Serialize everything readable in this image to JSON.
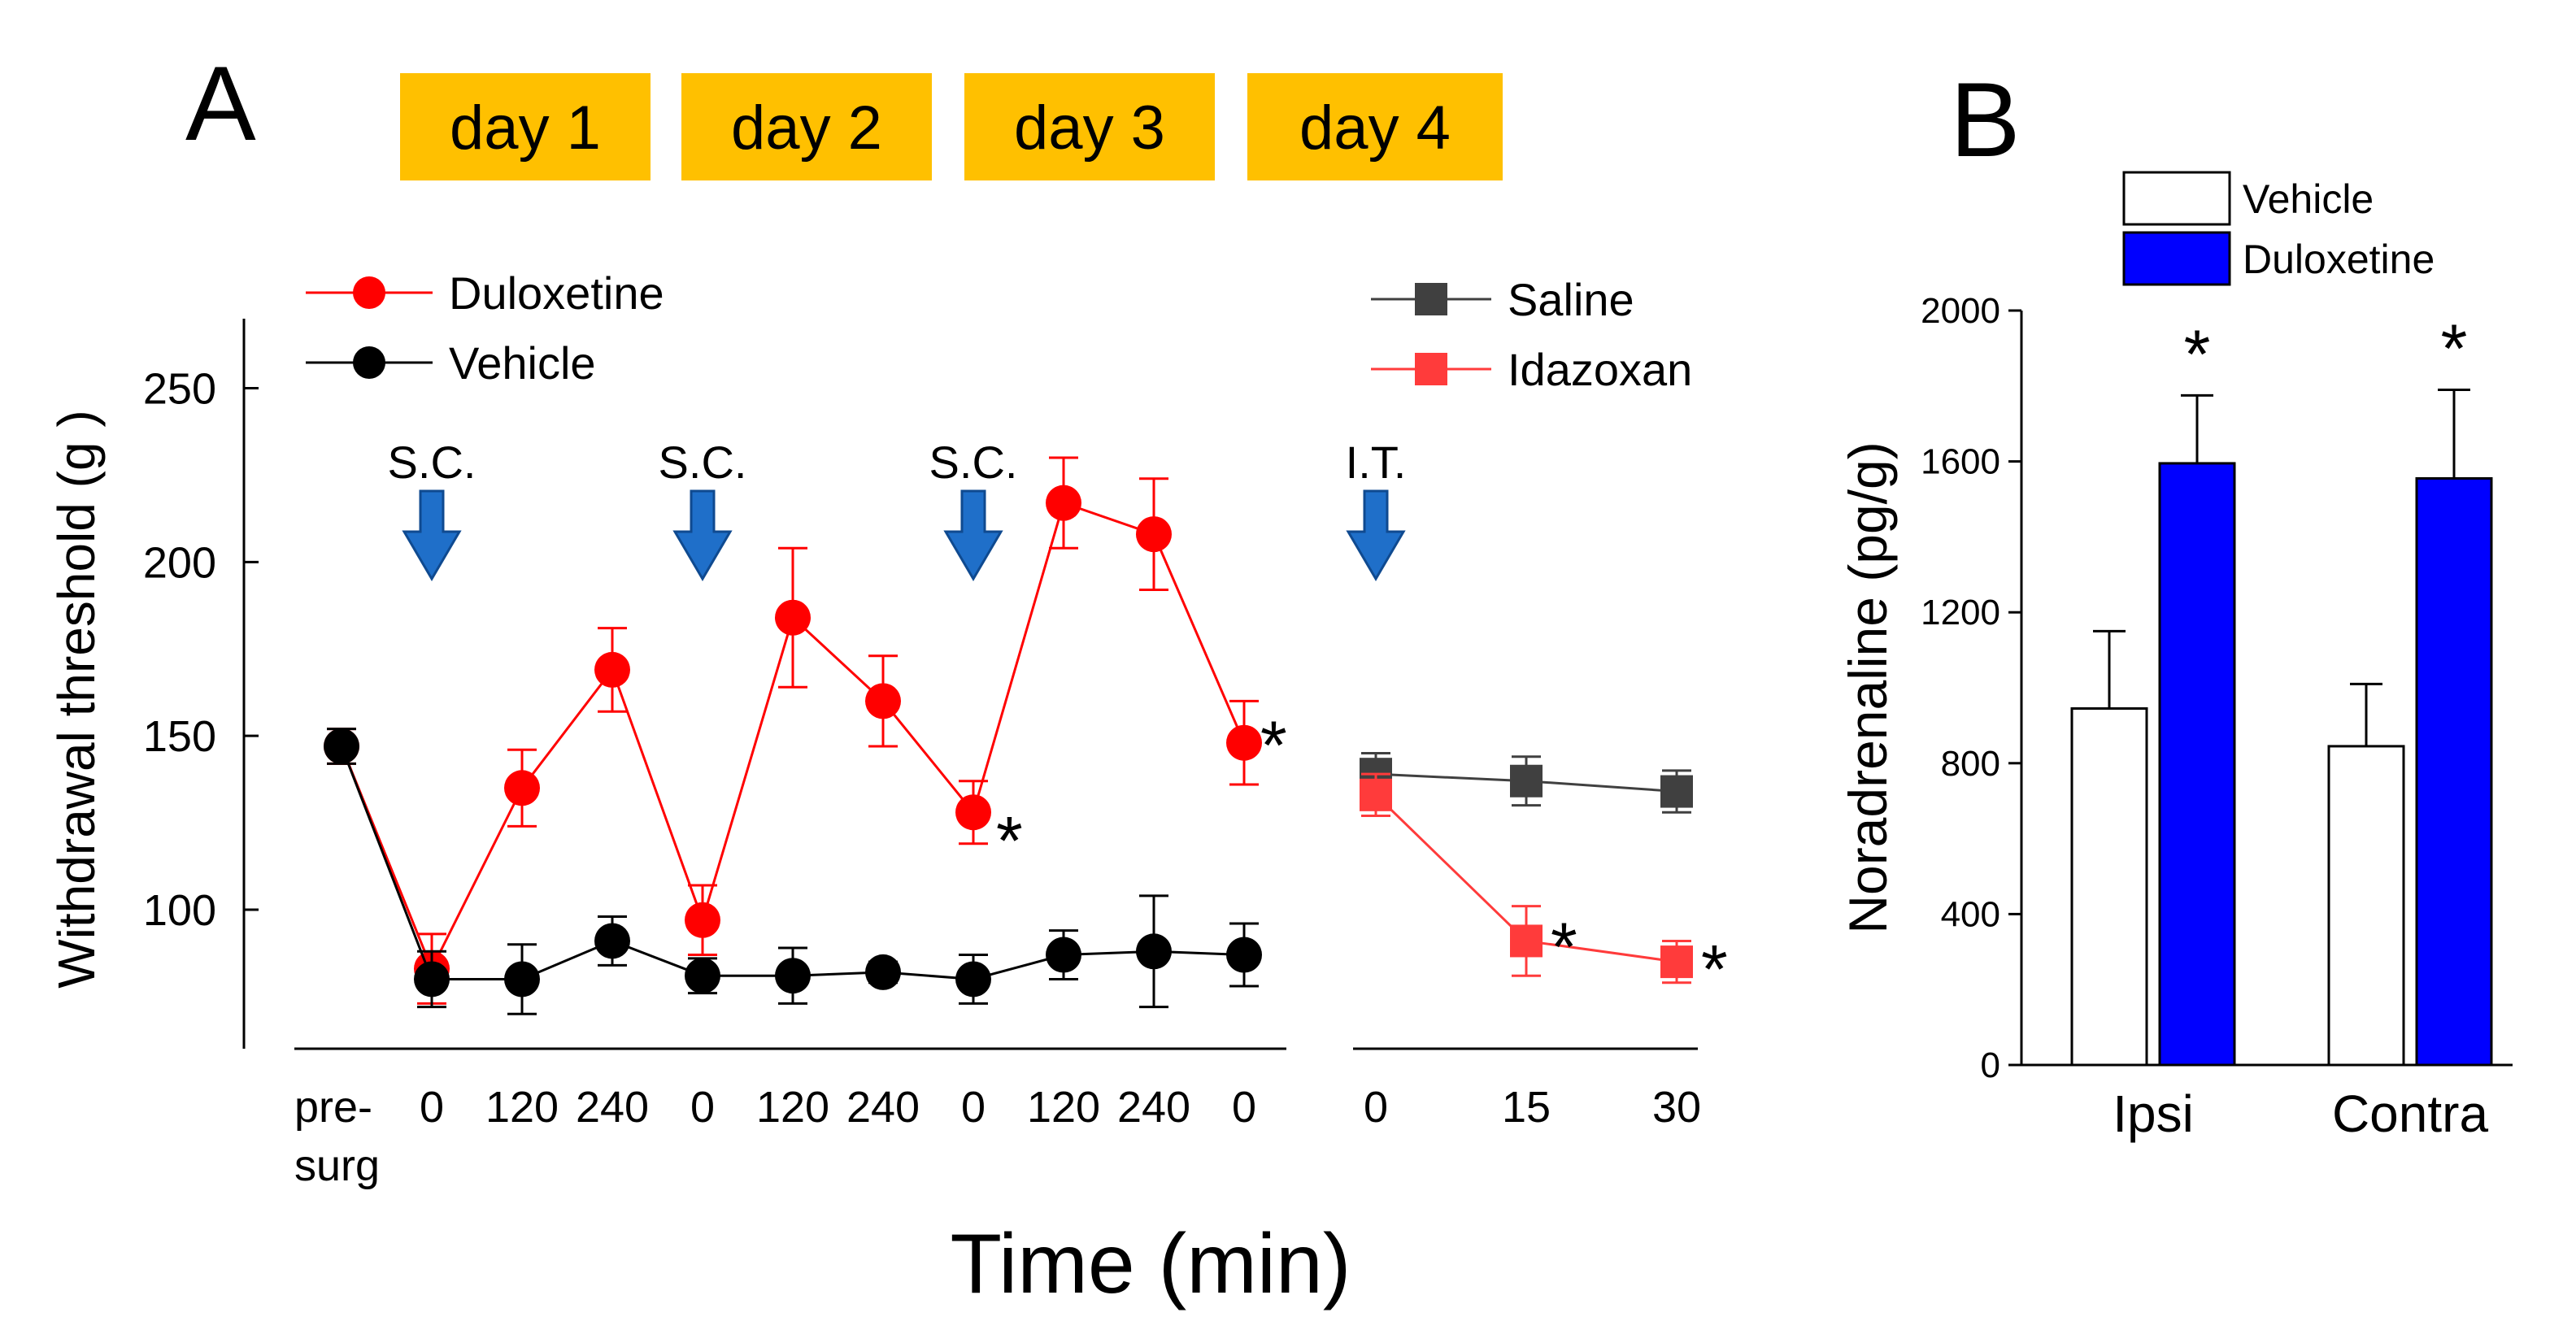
{
  "panels": {
    "a": "A",
    "b": "B"
  },
  "chart_data": [
    {
      "type": "line",
      "panel": "A",
      "ylabel": "Withdrawal threshold (g )",
      "xlabel": "Time (min)",
      "ylim": [
        60,
        270
      ],
      "yticks": [
        100,
        150,
        200,
        250
      ],
      "days": [
        "day 1",
        "day 2",
        "day 3",
        "day 4"
      ],
      "x_left": [
        "pre-\nsurg",
        "0",
        "120",
        "240",
        "0",
        "120",
        "240",
        "0",
        "120",
        "240",
        "0"
      ],
      "x_right": [
        "0",
        "15",
        "30"
      ],
      "injections": [
        "S.C.",
        "S.C.",
        "S.C.",
        "I.T."
      ],
      "series": [
        {
          "name": "Duloxetine",
          "color": "#ff0000",
          "marker": "circle",
          "values": [
            147,
            83,
            135,
            169,
            97,
            184,
            160,
            128,
            217,
            208,
            148
          ],
          "errors": [
            5,
            10,
            11,
            12,
            10,
            20,
            13,
            9,
            13,
            16,
            12
          ]
        },
        {
          "name": "Vehicle",
          "color": "#000000",
          "marker": "circle",
          "values": [
            147,
            80,
            80,
            91,
            81,
            81,
            82,
            80,
            87,
            88,
            87
          ],
          "errors": [
            5,
            8,
            10,
            7,
            5,
            8,
            3,
            7,
            7,
            16,
            9
          ]
        },
        {
          "name": "Saline",
          "color": "#404040",
          "marker": "square",
          "x": [
            0,
            15,
            30
          ],
          "values": [
            139,
            137,
            134
          ],
          "errors": [
            6,
            7,
            6
          ]
        },
        {
          "name": "Idazoxan",
          "color": "#ff3b3b",
          "marker": "square",
          "x": [
            0,
            15,
            30
          ],
          "values": [
            133,
            91,
            85
          ],
          "errors": [
            6,
            10,
            6
          ]
        }
      ],
      "annotations": [
        "*",
        "*",
        "*",
        "*"
      ]
    },
    {
      "type": "bar",
      "panel": "B",
      "ylabel": "Noradrenaline (pg/g)",
      "categories": [
        "Ipsi",
        "Contra"
      ],
      "ylim": [
        0,
        2000
      ],
      "yticks": [
        "0",
        "400",
        "800",
        "1200",
        "1600",
        "2000"
      ],
      "series": [
        {
          "name": "Vehicle",
          "color": "#ffffff",
          "values": [
            945,
            845
          ],
          "errors": [
            205,
            165
          ]
        },
        {
          "name": "Duloxetine",
          "color": "#0000ff",
          "values": [
            1595,
            1555
          ],
          "errors": [
            180,
            235
          ]
        }
      ],
      "annotations": [
        "*",
        "*"
      ]
    }
  ]
}
